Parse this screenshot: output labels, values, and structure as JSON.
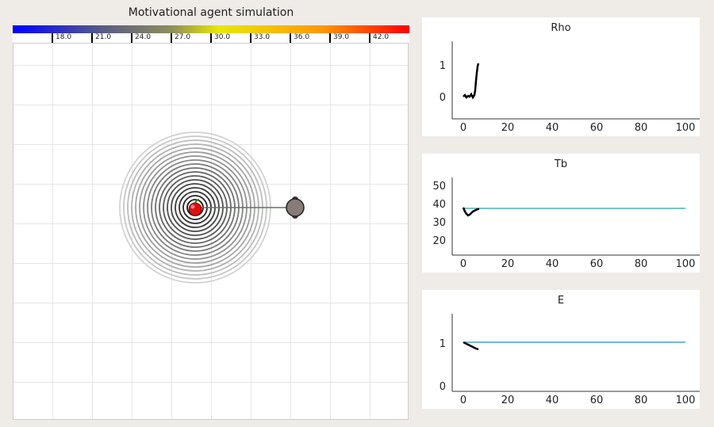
{
  "simulation": {
    "title": "Motivational agent simulation",
    "colorbar_ticks": [
      "18.0",
      "21.0",
      "24.0",
      "27.0",
      "30.0",
      "33.0",
      "36.0",
      "39.0",
      "42.0"
    ]
  },
  "panels": [
    {
      "title": "Rho",
      "x_ticks": [
        "0",
        "20",
        "40",
        "60",
        "80",
        "100"
      ],
      "y_ticks": [
        "1",
        "0"
      ]
    },
    {
      "title": "Tb",
      "x_ticks": [
        "0",
        "20",
        "40",
        "60",
        "80",
        "100"
      ],
      "y_ticks": [
        "50",
        "40",
        "30",
        "20"
      ]
    },
    {
      "title": "E",
      "x_ticks": [
        "0",
        "20",
        "40",
        "60",
        "80",
        "100"
      ],
      "y_ticks": [
        "1",
        "0"
      ]
    }
  ],
  "colors": {
    "setpoint_line": "#1f8fd0",
    "tb_setpoint_line": "#1aa6a6",
    "trace": "#000000"
  }
}
